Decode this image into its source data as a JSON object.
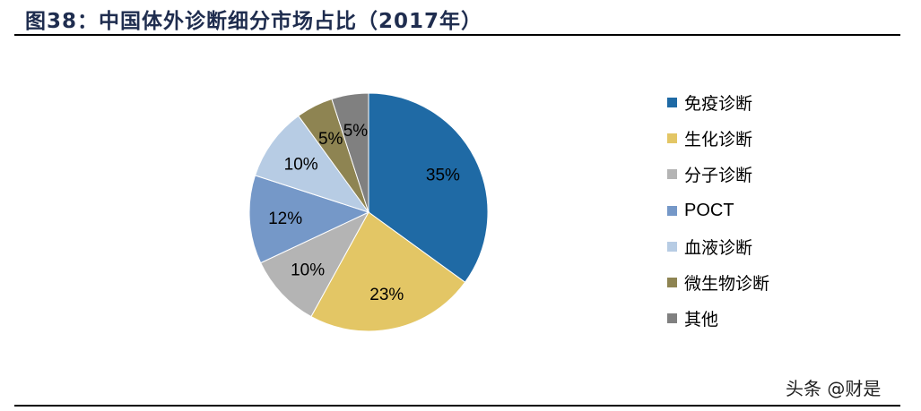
{
  "header": {
    "title": "图38：中国体外诊断细分市场占比（2017年）"
  },
  "watermark": "头条 @财是",
  "chart_data": {
    "type": "pie",
    "title": "中国体外诊断细分市场占比（2017年）",
    "categories": [
      "免疫诊断",
      "生化诊断",
      "分子诊断",
      "POCT",
      "血液诊断",
      "微生物诊断",
      "其他"
    ],
    "values": [
      35,
      23,
      10,
      12,
      10,
      5,
      5
    ],
    "labels": [
      "35%",
      "23%",
      "10%",
      "12%",
      "10%",
      "5%",
      "5%"
    ],
    "colors": [
      "#1f6aa5",
      "#e3c665",
      "#b4b4b4",
      "#7598c8",
      "#b7cce4",
      "#8e8452",
      "#808080"
    ],
    "start_angle": "12 o'clock, clockwise",
    "legend_position": "right"
  },
  "legend": {
    "items": [
      {
        "label": "免疫诊断",
        "color": "#1f6aa5"
      },
      {
        "label": "生化诊断",
        "color": "#e3c665"
      },
      {
        "label": "分子诊断",
        "color": "#b4b4b4"
      },
      {
        "label": "POCT",
        "color": "#7598c8"
      },
      {
        "label": "血液诊断",
        "color": "#b7cce4"
      },
      {
        "label": "微生物诊断",
        "color": "#8e8452"
      },
      {
        "label": "其他",
        "color": "#808080"
      }
    ]
  }
}
